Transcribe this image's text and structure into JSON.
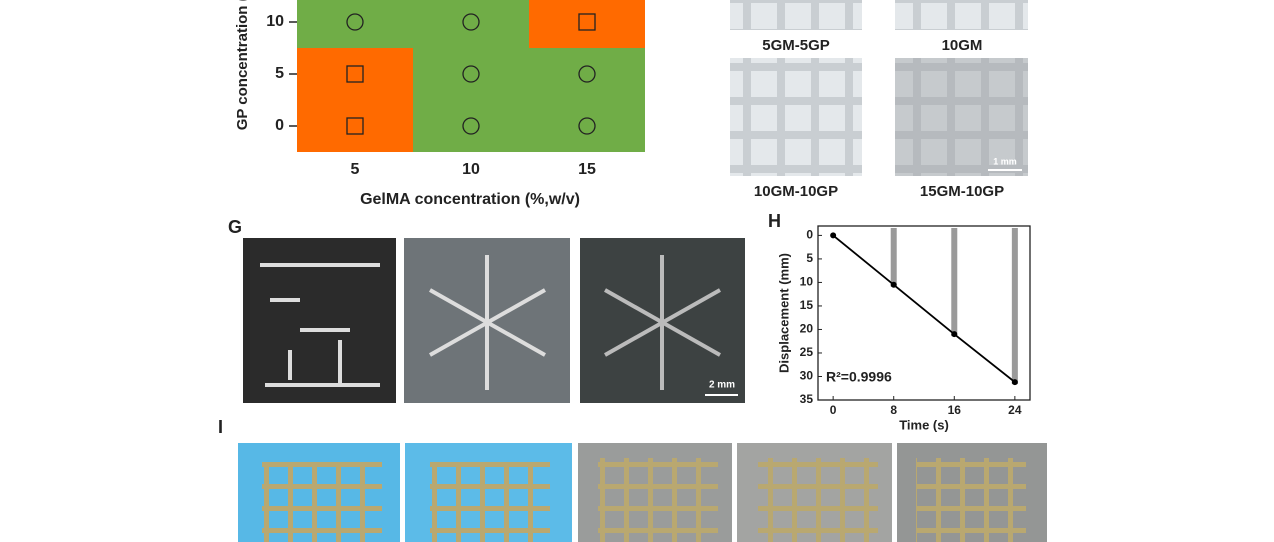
{
  "chart_data": [
    {
      "type": "heatmap",
      "xlabel": "GelMA concentration (%,w/v)",
      "ylabel": "GP concentration (%,w/v)",
      "categories": [
        "5",
        "10",
        "15"
      ],
      "rows": [
        "0",
        "5",
        "10"
      ],
      "markers": [
        [
          "square",
          "circle",
          "circle"
        ],
        [
          "square",
          "circle",
          "circle"
        ],
        [
          "circle",
          "circle",
          "square"
        ]
      ],
      "marker_colors": {
        "square": "#ff6a00",
        "circle": "#70ad47"
      }
    },
    {
      "type": "line",
      "annotation": "R²=0.9996",
      "xlabel": "Time (s)",
      "ylabel": "Displacement (mm)",
      "x": [
        0,
        8,
        16,
        24
      ],
      "values": [
        0,
        10.5,
        21,
        31.2
      ],
      "color": "#000000",
      "xlim": [
        -2,
        26
      ],
      "xticks": [
        0,
        8,
        16,
        24
      ],
      "ylim": [
        -2,
        35
      ],
      "yticks": [
        0,
        5,
        10,
        15,
        20,
        25,
        30,
        35
      ],
      "y_inverted": true
    }
  ],
  "panels": {
    "F": {
      "captions": [
        "5GM-5GP",
        "10GM",
        "10GM-10GP",
        "15GM-10GP"
      ],
      "scale_bar": "1 mm"
    },
    "G": {
      "label": "G",
      "scale_bar": "2 mm"
    },
    "H": {
      "label": "H"
    },
    "I": {
      "label": "I"
    }
  }
}
